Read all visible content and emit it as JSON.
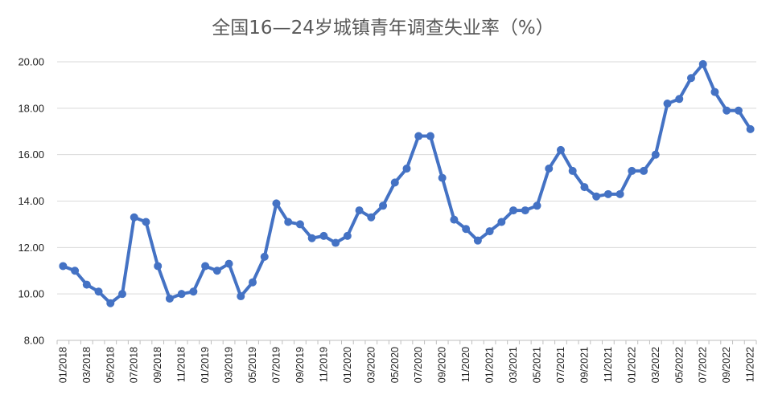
{
  "chart_data": {
    "type": "line",
    "title": "全国16—24岁城镇青年调查失业率（%）",
    "ylim": [
      8,
      20
    ],
    "yticks": [
      "8.00",
      "10.00",
      "12.00",
      "14.00",
      "16.00",
      "18.00",
      "20.00"
    ],
    "grid": true,
    "legend": "none",
    "colors": {
      "series": "#4472c4"
    },
    "x": [
      "01/2018",
      "02/2018",
      "03/2018",
      "04/2018",
      "05/2018",
      "06/2018",
      "07/2018",
      "08/2018",
      "09/2018",
      "10/2018",
      "11/2018",
      "12/2018",
      "01/2019",
      "02/2019",
      "03/2019",
      "04/2019",
      "05/2019",
      "06/2019",
      "07/2019",
      "08/2019",
      "09/2019",
      "10/2019",
      "11/2019",
      "12/2019",
      "01/2020",
      "02/2020",
      "03/2020",
      "04/2020",
      "05/2020",
      "06/2020",
      "07/2020",
      "08/2020",
      "09/2020",
      "10/2020",
      "11/2020",
      "12/2020",
      "01/2021",
      "02/2021",
      "03/2021",
      "04/2021",
      "05/2021",
      "06/2021",
      "07/2021",
      "08/2021",
      "09/2021",
      "10/2021",
      "11/2021",
      "12/2021",
      "01/2022",
      "02/2022",
      "03/2022",
      "04/2022",
      "05/2022",
      "06/2022",
      "07/2022",
      "08/2022",
      "09/2022",
      "10/2022",
      "11/2022"
    ],
    "xticks": [
      "01/2018",
      "03/2018",
      "05/2018",
      "07/2018",
      "09/2018",
      "11/2018",
      "01/2019",
      "03/2019",
      "05/2019",
      "07/2019",
      "09/2019",
      "11/2019",
      "01/2020",
      "03/2020",
      "05/2020",
      "07/2020",
      "09/2020",
      "11/2020",
      "01/2021",
      "03/2021",
      "05/2021",
      "07/2021",
      "09/2021",
      "11/2021",
      "01/2022",
      "03/2022",
      "05/2022",
      "07/2022",
      "09/2022",
      "11/2022"
    ],
    "series": [
      {
        "values": [
          11.2,
          11.0,
          10.4,
          10.1,
          9.6,
          10.0,
          13.3,
          13.1,
          11.2,
          9.8,
          10.0,
          10.1,
          11.2,
          11.0,
          11.3,
          9.9,
          10.5,
          11.6,
          13.9,
          13.1,
          13.0,
          12.4,
          12.5,
          12.2,
          12.5,
          13.6,
          13.3,
          13.8,
          14.8,
          15.4,
          16.8,
          16.8,
          15.0,
          13.2,
          12.8,
          12.3,
          12.7,
          13.1,
          13.6,
          13.6,
          13.8,
          15.4,
          16.2,
          15.3,
          14.6,
          14.2,
          14.3,
          14.3,
          15.3,
          15.3,
          16.0,
          18.2,
          18.4,
          19.3,
          19.9,
          18.7,
          17.9,
          17.9,
          17.1
        ]
      }
    ]
  }
}
